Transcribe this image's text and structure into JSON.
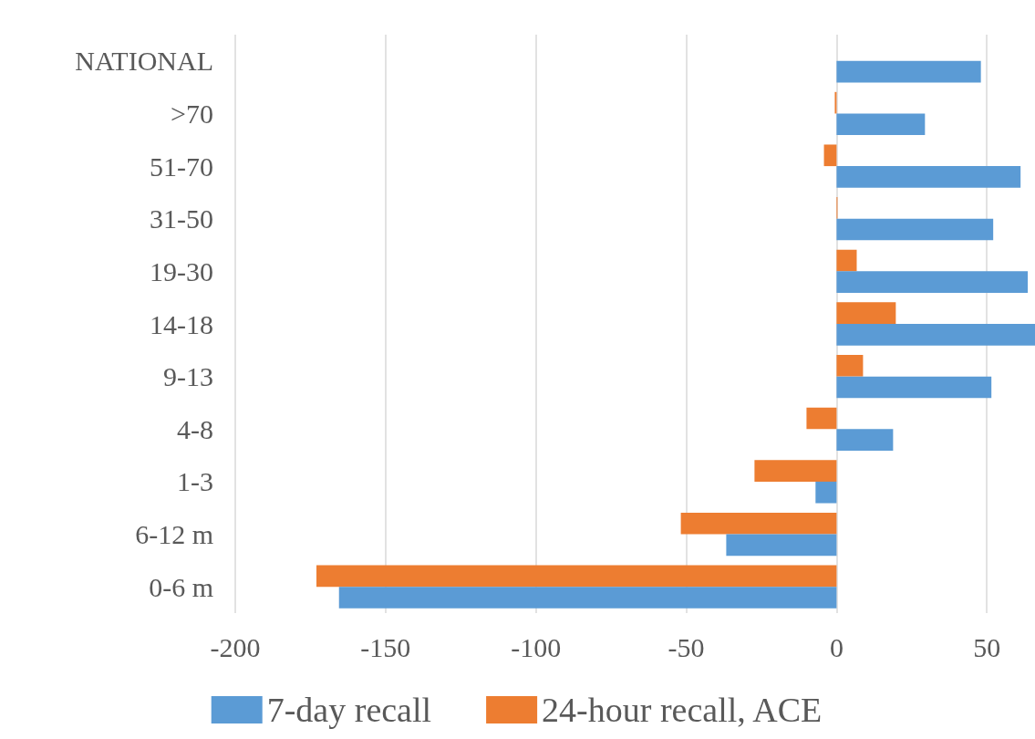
{
  "chart_data": {
    "type": "bar",
    "orientation": "horizontal",
    "categories": [
      "NATIONAL",
      ">70",
      "51-70",
      "31-50",
      "19-30",
      "14-18",
      "9-13",
      "4-8",
      "1-3",
      "6-12 m",
      "0-6 m"
    ],
    "series": [
      {
        "name": "7-day recall",
        "color": "#5b9bd5",
        "values": [
          48,
          29.4,
          61.2,
          52.1,
          63.6,
          66,
          51.5,
          18.8,
          -7,
          -36.7,
          -165.5
        ]
      },
      {
        "name": "24-hour recall, ACE",
        "color": "#ed7d31",
        "values": [
          null,
          -0.6,
          -4.2,
          0.3,
          6.7,
          19.7,
          8.8,
          -10,
          -27.3,
          -51.8,
          -173
        ]
      }
    ],
    "xlim": [
      -200,
      66
    ],
    "xticks": [
      -200,
      -150,
      -100,
      -50,
      0,
      50
    ],
    "grid": "x",
    "legend": "bottom"
  }
}
